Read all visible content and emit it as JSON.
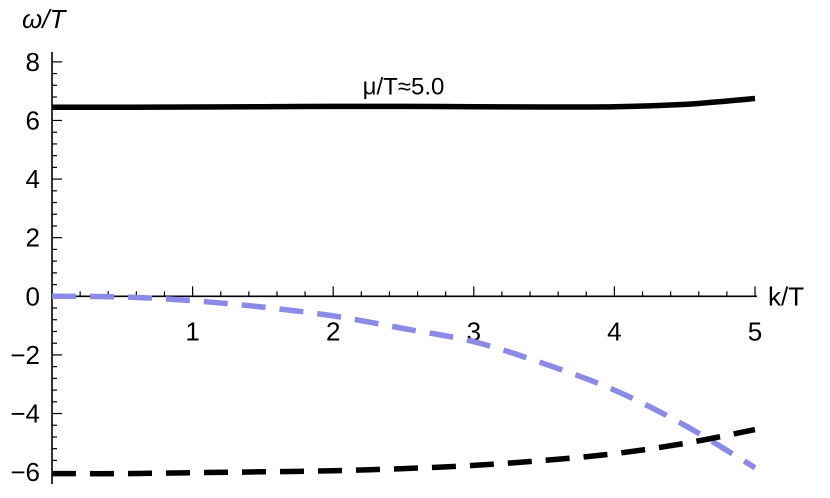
{
  "chart_data": {
    "type": "line",
    "xlabel": "k/T",
    "ylabel": "ω/T",
    "xlim": [
      0,
      5
    ],
    "ylim": [
      -6.2,
      8.2
    ],
    "x_ticks": [
      1,
      2,
      3,
      4,
      5
    ],
    "y_ticks": [
      8,
      6,
      4,
      2,
      0,
      -2,
      -4,
      -6
    ],
    "x_tick_labels": [
      "1",
      "2",
      "3",
      "4",
      "5"
    ],
    "y_tick_labels": [
      "8",
      "6",
      "4",
      "2",
      "0",
      "−2",
      "−4",
      "−6"
    ],
    "annotation": "μ/T≈5.0",
    "grid": false,
    "series": [
      {
        "style": "solid",
        "color": "#000000",
        "x": [
          0,
          0.5,
          1,
          1.5,
          2,
          2.5,
          3,
          3.5,
          4,
          4.5,
          5
        ],
        "y": [
          6.45,
          6.45,
          6.46,
          6.47,
          6.48,
          6.48,
          6.47,
          6.46,
          6.47,
          6.55,
          6.75
        ]
      },
      {
        "style": "dashed",
        "color": "#8a8aee",
        "x": [
          0,
          0.5,
          1,
          1.5,
          2,
          2.5,
          3,
          3.5,
          4,
          4.5,
          5
        ],
        "y": [
          0.0,
          -0.02,
          -0.15,
          -0.37,
          -0.67,
          -1.1,
          -1.55,
          -2.3,
          -3.2,
          -4.4,
          -5.85
        ]
      },
      {
        "style": "dashed",
        "color": "#000000",
        "x": [
          0,
          0.5,
          1,
          1.5,
          2,
          2.5,
          3,
          3.5,
          4,
          4.5,
          5
        ],
        "y": [
          -6.05,
          -6.05,
          -6.02,
          -5.99,
          -5.95,
          -5.88,
          -5.77,
          -5.6,
          -5.37,
          -5.02,
          -4.55
        ]
      }
    ]
  }
}
